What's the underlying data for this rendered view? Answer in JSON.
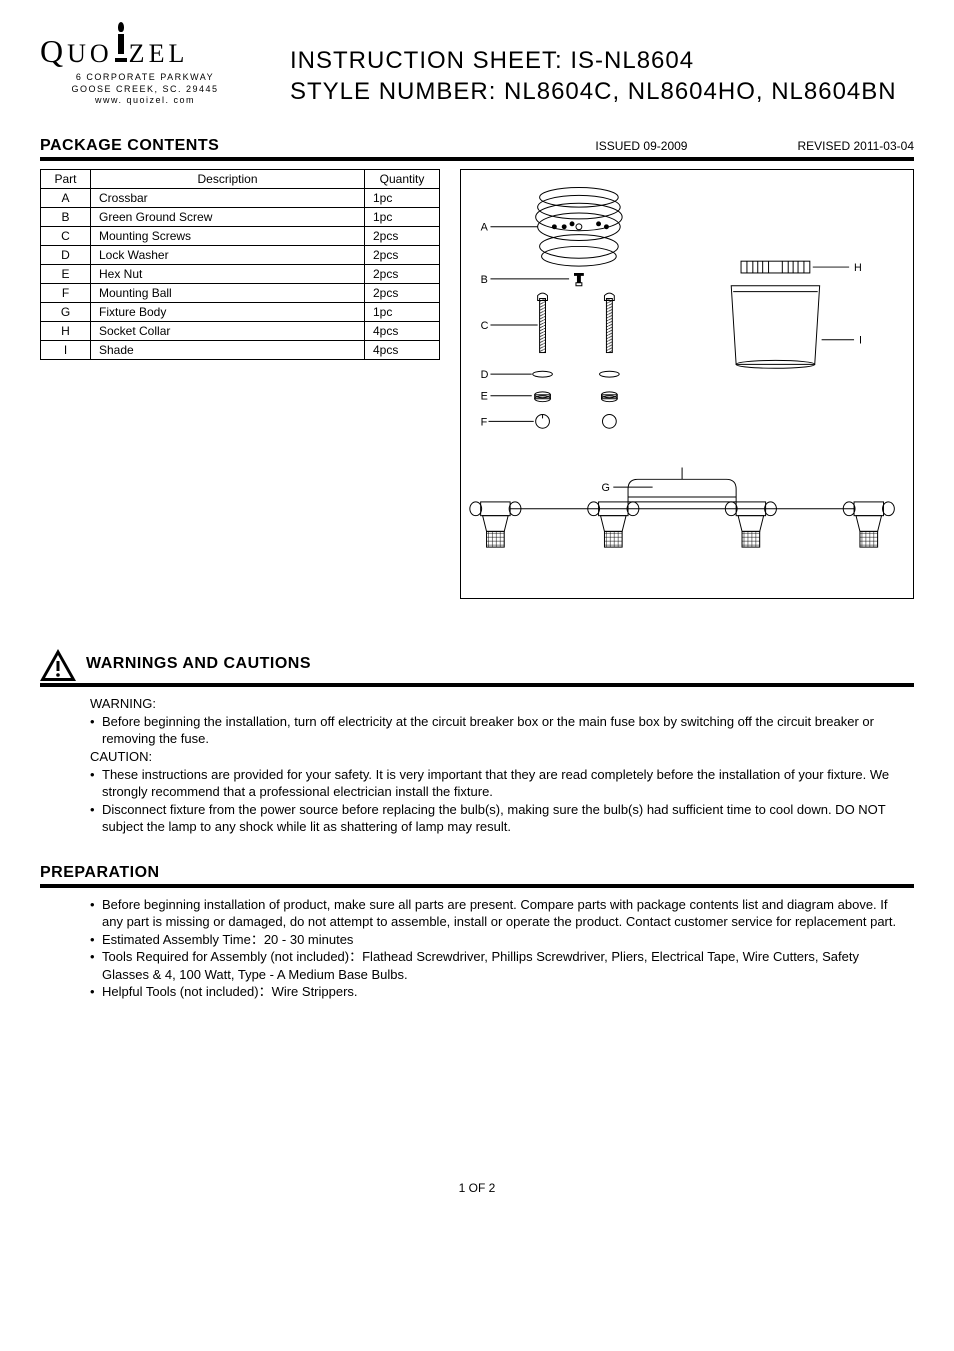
{
  "logo": {
    "brand": "QUOIZEL",
    "address1": "6 CORPORATE PARKWAY",
    "address2": "GOOSE CREEK, SC. 29445",
    "website": "www. quoizel. com"
  },
  "titles": {
    "instruction_label": "INSTRUCTION SHEET:",
    "instruction_value": "IS-NL8604",
    "style_label": "STYLE NUMBER:",
    "style_value": "NL8604C, NL8604HO, NL8604BN"
  },
  "package": {
    "heading": "PACKAGE CONTENTS",
    "issued": "ISSUED 09-2009",
    "revised": "REVISED 2011-03-04",
    "columns": [
      "Part",
      "Description",
      "Quantity"
    ],
    "rows": [
      [
        "A",
        "Crossbar",
        "1pc"
      ],
      [
        "B",
        "Green Ground Screw",
        "1pc"
      ],
      [
        "C",
        "Mounting Screws",
        "2pcs"
      ],
      [
        "D",
        "Lock Washer",
        "2pcs"
      ],
      [
        "E",
        "Hex Nut",
        "2pcs"
      ],
      [
        "F",
        "Mounting Ball",
        "2pcs"
      ],
      [
        "G",
        "Fixture Body",
        "1pc"
      ],
      [
        "H",
        "Socket Collar",
        "4pcs"
      ],
      [
        "I",
        "Shade",
        "4pcs"
      ]
    ]
  },
  "diagram": {
    "labels": {
      "a": "A",
      "b": "B",
      "c": "C",
      "d": "D",
      "e": "E",
      "f": "F",
      "g": "G",
      "h": "H",
      "i": "I"
    }
  },
  "warnings": {
    "heading": "WARNINGS AND CAUTIONS",
    "warning_label": "WARNING:",
    "warning_bullet": "Before beginning the installation, turn off electricity at the circuit breaker box or the main fuse box by switching off the circuit breaker or removing the fuse.",
    "caution_label": "CAUTION:",
    "caution_bullet1": "These instructions are provided for your safety. It is very important that they are read completely before the  installation of your fixture.  We strongly recommend that a professional electrician install the fixture.",
    "caution_bullet2": "Disconnect fixture from the power source before replacing the bulb(s), making sure the bulb(s) had sufficient time to cool down. DO NOT subject the lamp to any  shock while lit as shattering of lamp may result."
  },
  "preparation": {
    "heading": "PREPARATION",
    "bullet1": "Before beginning installation of product, make sure all parts are present. Compare parts with package contents list  and diagram above. If any part is missing or  damaged, do not attempt to assemble, install or operate the product.  Contact customer service for replacement part.",
    "bullet2": "Estimated Assembly Time：20 - 30 minutes",
    "bullet3": "Tools Required for Assembly  (not included)：Flathead  Screwdriver,   Phillips  Screwdriver, Pliers, Electrical Tape, Wire Cutters, Safety Glasses & 4, 100 Watt, Type - A Medium Base  Bulbs.",
    "bullet4": "Helpful Tools  (not included)：Wire Strippers."
  },
  "page": {
    "num": "1 OF 2"
  }
}
